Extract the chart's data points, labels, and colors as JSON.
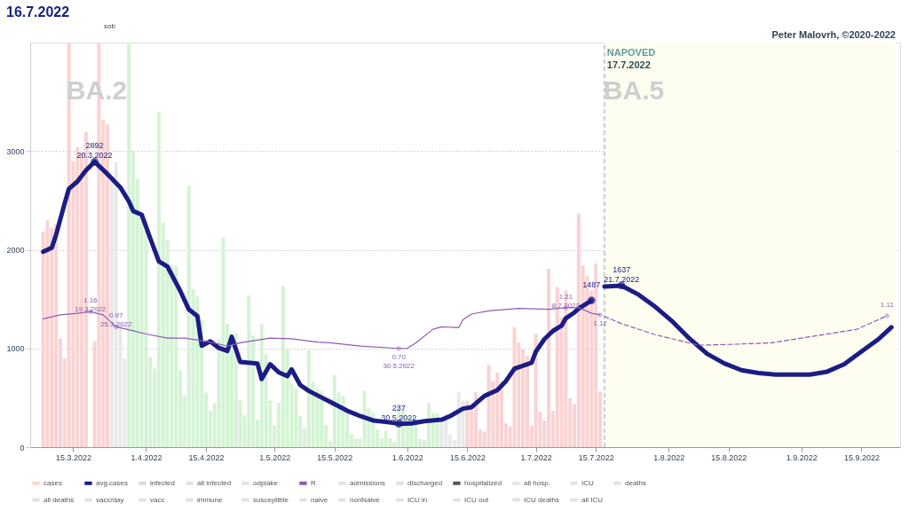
{
  "chart_data": {
    "type": "bar",
    "title": "16.7.2022",
    "annotations": [
      "sob",
      "Peter Malovrh, ©2020-2022",
      "BA.2",
      "BA.5"
    ],
    "xlim": [
      "2022-03-06",
      "2022-09-23"
    ],
    "xticks": [
      {
        "value": "2022-03-15",
        "label": "15.3.2022"
      },
      {
        "value": "2022-04-01",
        "label": "1.4.2022"
      },
      {
        "value": "2022-04-15",
        "label": "15.4.2022"
      },
      {
        "value": "2022-05-01",
        "label": "1.5.2022"
      },
      {
        "value": "2022-05-15",
        "label": "15.5.2022"
      },
      {
        "value": "2022-06-01",
        "label": "1.6.2022"
      },
      {
        "value": "2022-06-15",
        "label": "15.6.2022"
      },
      {
        "value": "2022-07-01",
        "label": "1.7.2022"
      },
      {
        "value": "2022-07-15",
        "label": "15.7.2022"
      },
      {
        "value": "2022-08-01",
        "label": "1.8.2022"
      },
      {
        "value": "2022-08-15",
        "label": "15.8.2022"
      },
      {
        "value": "2022-09-01",
        "label": "1.9.2022"
      },
      {
        "value": "2022-09-15",
        "label": "15.9.2022"
      }
    ],
    "ylim": [
      0,
      4100
    ],
    "yticks": [
      0,
      1000,
      2000,
      3000
    ],
    "y2lim": [
      -0.535,
      4.527
    ],
    "tick_labels": "xy",
    "grid": "y",
    "legend": "bottom",
    "bands": [
      {
        "axis": "x",
        "from": "2022-07-17",
        "to": "2022-09-23",
        "label": "NAPOVED",
        "color": "#fefef0"
      }
    ],
    "ref_lines": [
      {
        "axis": "x",
        "value": "2022-07-17",
        "label": "17.7.2022",
        "color": "#cccccc",
        "line_style": "dashed"
      }
    ],
    "series": [
      {
        "name": "cases",
        "color": "#f9d3d3",
        "x": [
          "2022-03-08",
          "2022-03-09",
          "2022-03-10",
          "2022-03-11",
          "2022-03-12",
          "2022-03-13",
          "2022-03-14",
          "2022-03-15",
          "2022-03-16",
          "2022-03-17",
          "2022-03-18",
          "2022-03-19",
          "2022-03-20",
          "2022-03-21",
          "2022-03-22",
          "2022-03-23",
          "2022-03-24",
          "2022-03-25",
          "2022-03-26",
          "2022-03-27",
          "2022-03-28",
          "2022-03-29",
          "2022-03-30",
          "2022-03-31",
          "2022-04-01",
          "2022-04-02",
          "2022-04-03",
          "2022-04-04",
          "2022-04-05",
          "2022-04-06",
          "2022-04-07",
          "2022-04-08",
          "2022-04-09",
          "2022-04-10",
          "2022-04-11",
          "2022-04-12",
          "2022-04-13",
          "2022-04-14",
          "2022-04-15",
          "2022-04-16",
          "2022-04-17",
          "2022-04-18",
          "2022-04-19",
          "2022-04-20",
          "2022-04-21",
          "2022-04-22",
          "2022-04-23",
          "2022-04-24",
          "2022-04-25",
          "2022-04-26",
          "2022-04-27",
          "2022-04-28",
          "2022-04-29",
          "2022-04-30",
          "2022-05-01",
          "2022-05-02",
          "2022-05-03",
          "2022-05-04",
          "2022-05-05",
          "2022-05-06",
          "2022-05-07",
          "2022-05-08",
          "2022-05-09",
          "2022-05-10",
          "2022-05-11",
          "2022-05-12",
          "2022-05-13",
          "2022-05-14",
          "2022-05-15",
          "2022-05-16",
          "2022-05-17",
          "2022-05-18",
          "2022-05-19",
          "2022-05-20",
          "2022-05-21",
          "2022-05-22",
          "2022-05-23",
          "2022-05-24",
          "2022-05-25",
          "2022-05-26",
          "2022-05-27",
          "2022-05-28",
          "2022-05-29",
          "2022-05-30",
          "2022-05-31",
          "2022-06-01",
          "2022-06-02",
          "2022-06-03",
          "2022-06-04",
          "2022-06-05",
          "2022-06-06",
          "2022-06-07",
          "2022-06-08",
          "2022-06-09",
          "2022-06-10",
          "2022-06-11",
          "2022-06-12",
          "2022-06-13",
          "2022-06-14",
          "2022-06-15",
          "2022-06-16",
          "2022-06-17",
          "2022-06-18",
          "2022-06-19",
          "2022-06-20",
          "2022-06-21",
          "2022-06-22",
          "2022-06-23",
          "2022-06-24",
          "2022-06-25",
          "2022-06-26",
          "2022-06-27",
          "2022-06-28",
          "2022-06-29",
          "2022-06-30",
          "2022-07-01",
          "2022-07-02",
          "2022-07-03",
          "2022-07-04",
          "2022-07-05",
          "2022-07-06",
          "2022-07-07",
          "2022-07-08",
          "2022-07-09",
          "2022-07-10",
          "2022-07-11",
          "2022-07-12",
          "2022-07-13",
          "2022-07-14",
          "2022-07-15",
          "2022-07-16"
        ],
        "values": [
          2183,
          2300,
          2220,
          2258,
          1103,
          900,
          4100,
          2896,
          3038,
          2976,
          3195,
          null,
          1073,
          4100,
          3316,
          3270,
          2750,
          2888,
          1245,
          900,
          4100,
          3008,
          2716,
          2355,
          2300,
          915,
          795,
          3398,
          2275,
          2100,
          1845,
          1830,
          780,
          518,
          2648,
          1598,
          1530,
          1290,
          555,
          368,
          443,
          1100,
          2123,
          1253,
          1148,
          1150,
          480,
          323,
          1538,
          1133,
          278,
          1245,
          945,
          473,
          225,
          450,
          1635,
          990,
          645,
          600,
          315,
          188,
          983,
          660,
          600,
          570,
          225,
          60,
          728,
          555,
          518,
          383,
          128,
          83,
          83,
          570,
          390,
          353,
          180,
          90,
          165,
          90,
          53,
          405,
          383,
          308,
          293,
          293,
          83,
          75,
          450,
          345,
          338,
          293,
          338,
          128,
          68,
          555,
          465,
          465,
          413,
          555,
          180,
          158,
          833,
          668,
          758,
          668,
          240,
          210,
          1215,
          1058,
          990,
          923,
          218,
          1148,
          360,
          270,
          1808,
          368,
          1620,
          1320,
          1590,
          495,
          435,
          2370,
          1838,
          1733,
          1590,
          1860,
          563
        ],
        "colors": [
          "#f9d3d3",
          "#f9d3d3",
          "#f9d3d3",
          "#f9d3d3",
          "#f9d3d3",
          "#f9d3d3",
          "#f9d3d3",
          "#f9d3d3",
          "#f9d3d3",
          "#f9d3d3",
          "#f9d3d3",
          "#f9d3d3",
          "#f9d3d3",
          "#f9d3d3",
          "#f9d3d3",
          "#f9d3d3",
          "#e9e9e9",
          "#e9e9e9",
          "#e9e9e9",
          "#e9e9e9",
          "#d5f3d5",
          "#d5f3d5",
          "#d5f3d5",
          "#d5f3d5",
          "#d5f3d5",
          "#d5f3d5",
          "#d5f3d5",
          "#d5f3d5",
          "#d5f3d5",
          "#d5f3d5",
          "#d5f3d5",
          "#d5f3d5",
          "#d5f3d5",
          "#d5f3d5",
          "#d5f3d5",
          "#d5f3d5",
          "#d5f3d5",
          "#d5f3d5",
          "#d5f3d5",
          "#d5f3d5",
          "#d5f3d5",
          "#d5f3d5",
          "#d5f3d5",
          "#d5f3d5",
          "#d5f3d5",
          "#d5f3d5",
          "#d5f3d5",
          "#d5f3d5",
          "#d5f3d5",
          "#d5f3d5",
          "#d5f3d5",
          "#d5f3d5",
          "#d5f3d5",
          "#d5f3d5",
          "#d5f3d5",
          "#d5f3d5",
          "#d5f3d5",
          "#d5f3d5",
          "#d5f3d5",
          "#d5f3d5",
          "#d5f3d5",
          "#d5f3d5",
          "#d5f3d5",
          "#d5f3d5",
          "#d5f3d5",
          "#d5f3d5",
          "#d5f3d5",
          "#d5f3d5",
          "#d5f3d5",
          "#d5f3d5",
          "#d5f3d5",
          "#d5f3d5",
          "#d5f3d5",
          "#d5f3d5",
          "#d5f3d5",
          "#d5f3d5",
          "#d5f3d5",
          "#d5f3d5",
          "#d5f3d5",
          "#d5f3d5",
          "#d5f3d5",
          "#d5f3d5",
          "#d5f3d5",
          "#d5f3d5",
          "#d5f3d5",
          "#d5f3d5",
          "#d5f3d5",
          "#d5f3d5",
          "#d5f3d5",
          "#d5f3d5",
          "#d5f3d5",
          "#d5f3d5",
          "#d5f3d5",
          "#e9e9e9",
          "#e9e9e9",
          "#e9e9e9",
          "#e9e9e9",
          "#e9e9e9",
          "#e9e9e9",
          "#f9d3d3",
          "#f9d3d3",
          "#f9d3d3",
          "#f9d3d3",
          "#f9d3d3",
          "#f9d3d3",
          "#f9d3d3",
          "#f9d3d3",
          "#f9d3d3",
          "#f9d3d3",
          "#f9d3d3",
          "#f9d3d3",
          "#f9d3d3",
          "#f9d3d3",
          "#f9d3d3",
          "#f9d3d3",
          "#f9d3d3",
          "#f9d3d3",
          "#f9d3d3",
          "#f9d3d3",
          "#f9d3d3",
          "#f9d3d3",
          "#f9d3d3",
          "#f9d3d3",
          "#f9d3d3",
          "#f9d3d3",
          "#f9d3d3",
          "#f9d3d3",
          "#f9d3d3",
          "#f9d3d3",
          "#f9d3d3",
          "#f9d3d3"
        ]
      },
      {
        "name": "avg.cases",
        "type": "line",
        "color": "#1c1c85",
        "x": [
          "2022-03-08",
          "2022-03-10",
          "2022-03-11",
          "2022-03-13",
          "2022-03-14",
          "2022-03-16",
          "2022-03-18",
          "2022-03-20",
          "2022-03-23",
          "2022-03-26",
          "2022-03-28",
          "2022-03-29",
          "2022-03-31",
          "2022-04-02",
          "2022-04-04",
          "2022-04-06",
          "2022-04-09",
          "2022-04-11",
          "2022-04-13",
          "2022-04-14",
          "2022-04-16",
          "2022-04-18",
          "2022-04-20",
          "2022-04-21",
          "2022-04-23",
          "2022-04-27",
          "2022-04-28",
          "2022-04-30",
          "2022-05-02",
          "2022-05-04",
          "2022-05-05",
          "2022-05-07",
          "2022-05-09",
          "2022-05-11",
          "2022-05-14",
          "2022-05-18",
          "2022-05-21",
          "2022-05-24",
          "2022-05-27",
          "2022-05-30",
          "2022-06-02",
          "2022-06-05",
          "2022-06-09",
          "2022-06-11",
          "2022-06-14",
          "2022-06-16",
          "2022-06-19",
          "2022-06-22",
          "2022-06-24",
          "2022-06-26",
          "2022-06-30",
          "2022-07-01",
          "2022-07-03",
          "2022-07-05",
          "2022-07-07",
          "2022-07-08",
          "2022-07-10",
          "2022-07-11",
          "2022-07-14"
        ],
        "values": [
          1980,
          2020,
          2150,
          2470,
          2618,
          2693,
          2805,
          2892,
          2768,
          2633,
          2490,
          2393,
          2355,
          2115,
          1883,
          1830,
          1583,
          1395,
          1328,
          1028,
          1073,
          1005,
          975,
          1118,
          863,
          848,
          690,
          840,
          758,
          720,
          788,
          630,
          570,
          525,
          458,
          368,
          315,
          270,
          255,
          237,
          240,
          263,
          278,
          315,
          390,
          405,
          518,
          578,
          668,
          795,
          855,
          968,
          1095,
          1178,
          1230,
          1305,
          1365,
          1403,
          1487
        ],
        "value_labels": [
          null,
          null,
          null,
          null,
          null,
          null,
          null,
          "2892\n20.3.2022",
          null,
          null,
          null,
          null,
          null,
          null,
          null,
          null,
          null,
          null,
          null,
          null,
          null,
          null,
          null,
          null,
          null,
          null,
          null,
          null,
          null,
          null,
          null,
          null,
          null,
          null,
          null,
          null,
          null,
          null,
          null,
          "237\n30.5.2022",
          null,
          null,
          null,
          null,
          null,
          null,
          null,
          null,
          null,
          null,
          null,
          null,
          null,
          null,
          null,
          null,
          null,
          null,
          "1487"
        ]
      },
      {
        "type": "line",
        "color": "#1c1c85",
        "x": [
          "2022-07-17",
          "2022-07-21",
          "2022-07-25",
          "2022-07-29",
          "2022-08-02",
          "2022-08-06",
          "2022-08-10",
          "2022-08-14",
          "2022-08-18",
          "2022-08-22",
          "2022-08-26",
          "2022-08-30",
          "2022-09-03",
          "2022-09-07",
          "2022-09-11",
          "2022-09-15",
          "2022-09-19",
          "2022-09-22"
        ],
        "values": [
          1628,
          1637,
          1545,
          1418,
          1268,
          1095,
          945,
          848,
          780,
          750,
          735,
          735,
          735,
          765,
          840,
          968,
          1095,
          1215
        ],
        "value_labels": [
          null,
          "1637\n21.7.2022",
          null,
          null,
          null,
          null,
          null,
          null,
          null,
          null,
          null,
          null,
          null,
          null,
          null,
          null,
          null,
          null
        ]
      },
      {
        "name": "infected",
        "color": "#d9d9d9"
      },
      {
        "name": "all infected",
        "color": "#e3e3e3"
      },
      {
        "name": "odplake",
        "color": "#e3e3e3"
      },
      {
        "name": "R",
        "type": "line",
        "color": "#8e5bb5",
        "axis": "y2",
        "x": [
          "2022-03-08",
          "2022-03-12",
          "2022-03-16",
          "2022-03-19",
          "2022-03-22",
          "2022-03-25",
          "2022-03-29",
          "2022-04-01",
          "2022-04-06",
          "2022-04-10",
          "2022-04-15",
          "2022-04-20",
          "2022-04-23",
          "2022-04-30",
          "2022-05-05",
          "2022-05-11",
          "2022-05-14",
          "2022-05-21",
          "2022-05-30",
          "2022-06-01",
          "2022-06-03",
          "2022-06-07",
          "2022-06-09",
          "2022-06-13",
          "2022-06-14",
          "2022-06-16",
          "2022-06-20",
          "2022-06-27",
          "2022-07-04",
          "2022-07-08",
          "2022-07-11",
          "2022-07-14",
          "2022-07-16"
        ],
        "values": [
          1.07,
          1.12,
          1.14,
          1.16,
          1.12,
          0.97,
          0.92,
          0.88,
          0.83,
          0.83,
          0.79,
          0.73,
          0.77,
          0.83,
          0.82,
          0.78,
          0.77,
          0.73,
          0.7,
          0.7,
          0.77,
          0.94,
          0.97,
          0.96,
          1.06,
          1.13,
          1.17,
          1.2,
          1.19,
          1.21,
          1.21,
          1.14,
          1.12
        ],
        "value_labels": [
          null,
          null,
          null,
          "1.16\n19.3.2022",
          null,
          "0.97\n25.3.2022",
          null,
          null,
          null,
          null,
          null,
          null,
          null,
          null,
          null,
          null,
          null,
          null,
          "0.70\n30.5.2022",
          null,
          null,
          null,
          null,
          null,
          null,
          null,
          null,
          null,
          null,
          "1.21\n8.7.2022",
          null,
          null,
          "1.12"
        ]
      },
      {
        "type": "line",
        "color": "#8e5bb5",
        "axis": "y2",
        "line_style": "dashed",
        "x": [
          "2022-07-17",
          "2022-07-21",
          "2022-07-29",
          "2022-08-08",
          "2022-08-15",
          "2022-08-25",
          "2022-09-14",
          "2022-09-21"
        ],
        "values": [
          1.1,
          1.01,
          0.87,
          0.74,
          0.75,
          0.77,
          0.94,
          1.11
        ],
        "value_labels": [
          null,
          null,
          null,
          null,
          null,
          null,
          null,
          "1.11"
        ]
      },
      {
        "name": "admissions",
        "color": "#e3e3e3"
      },
      {
        "name": "discharged",
        "color": "#e3e3e3"
      },
      {
        "name": "hospitalized",
        "color": "#555555"
      },
      {
        "name": "all hosp.",
        "color": "#e3e3e3"
      },
      {
        "name": "ICU",
        "color": "#e3e3e3"
      },
      {
        "name": "deaths",
        "color": "#e3e3e3"
      },
      {
        "name": "all deaths",
        "color": "#e3e3e3"
      },
      {
        "name": "vacc/day",
        "color": "#e3e3e3"
      },
      {
        "name": "vacc",
        "color": "#e3e3e3"
      },
      {
        "name": "immune",
        "color": "#e3e3e3"
      },
      {
        "name": "susceptible",
        "color": "#e3e3e3"
      },
      {
        "name": "naive",
        "color": "#e3e3e3"
      },
      {
        "name": "nonNaive",
        "color": "#e3e3e3"
      },
      {
        "name": "ICU in",
        "color": "#e3e3e3"
      },
      {
        "name": "ICU out",
        "color": "#e3e3e3"
      },
      {
        "name": "ICU deaths",
        "color": "#e3e3e3"
      },
      {
        "name": "all ICU",
        "color": "#e3e3e3"
      }
    ]
  }
}
